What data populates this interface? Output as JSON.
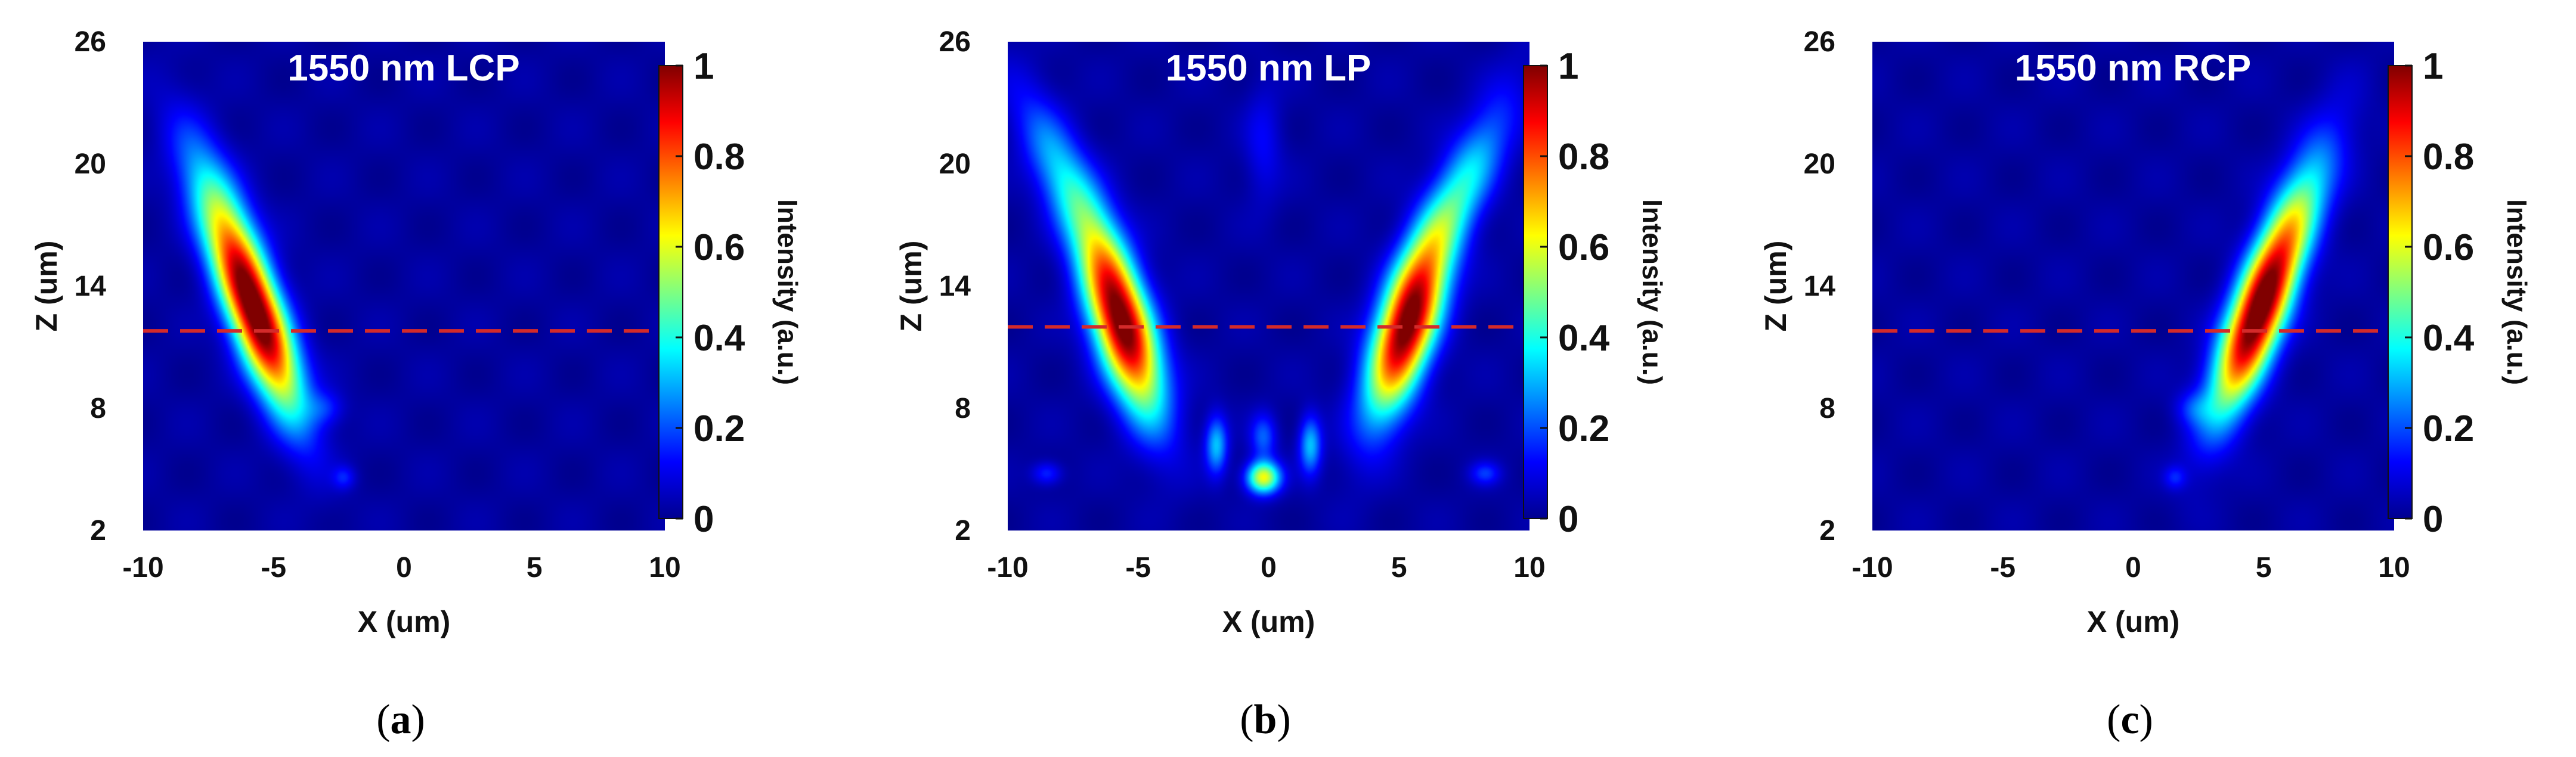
{
  "colors": {
    "background": "#ffffff",
    "reference_line": "#d42a2a",
    "colormap": [
      "#00008f",
      "#0000ff",
      "#00ffff",
      "#ffff00",
      "#ff0000",
      "#800000"
    ]
  },
  "chart_data": [
    {
      "type": "heatmap",
      "panel_id": "a",
      "title": "1550 nm LCP",
      "xlabel": "X (um)",
      "ylabel": "Z (um)",
      "xlim": [
        -10,
        10
      ],
      "ylim": [
        2,
        26
      ],
      "xticks": [
        -10,
        -5,
        0,
        5,
        10
      ],
      "yticks": [
        2,
        8,
        14,
        20,
        26
      ],
      "reference_line_z": 11.8,
      "colorbar": {
        "label": "Intensity (a.u.)",
        "ticks": [
          0,
          0.2,
          0.4,
          0.6,
          0.8,
          1
        ],
        "range": [
          0,
          1
        ]
      },
      "caption_open": "(",
      "caption_letter": "a",
      "caption_close": ")",
      "features": [
        {
          "x": -5.6,
          "z": 12.3,
          "peak": 1.0,
          "sigma_x": 0.75,
          "sigma_z": 3.2,
          "tilt_dx_dz": -0.27
        },
        {
          "x": -7.0,
          "z": 17.5,
          "peak": 0.35,
          "sigma_x": 0.8,
          "sigma_z": 3.0,
          "tilt_dx_dz": -0.3
        },
        {
          "x": -3.0,
          "z": 8.0,
          "peak": 0.12,
          "sigma_x": 0.5,
          "sigma_z": 0.6,
          "tilt_dx_dz": 0
        },
        {
          "x": -2.3,
          "z": 4.6,
          "peak": 0.12,
          "sigma_x": 0.3,
          "sigma_z": 0.4,
          "tilt_dx_dz": 0
        }
      ]
    },
    {
      "type": "heatmap",
      "panel_id": "b",
      "title": "1550 nm LP",
      "xlabel": "X (um)",
      "ylabel": "Z (um)",
      "xlim": [
        -10,
        10
      ],
      "ylim": [
        2,
        26
      ],
      "xticks": [
        -10,
        -5,
        0,
        5,
        10
      ],
      "yticks": [
        2,
        8,
        14,
        20,
        26
      ],
      "reference_line_z": 12.0,
      "colorbar": {
        "label": "Intensity (a.u.)",
        "ticks": [
          0,
          0.2,
          0.4,
          0.6,
          0.8,
          1
        ],
        "range": [
          0,
          1
        ]
      },
      "caption_open": "(",
      "caption_letter": "b",
      "caption_close": ")",
      "features": [
        {
          "x": -5.6,
          "z": 12.0,
          "peak": 1.0,
          "sigma_x": 0.8,
          "sigma_z": 3.0,
          "tilt_dx_dz": -0.22
        },
        {
          "x": 5.3,
          "z": 12.0,
          "peak": 1.0,
          "sigma_x": 0.8,
          "sigma_z": 3.0,
          "tilt_dx_dz": 0.22
        },
        {
          "x": -7.5,
          "z": 18.5,
          "peak": 0.35,
          "sigma_x": 0.8,
          "sigma_z": 3.2,
          "tilt_dx_dz": -0.35
        },
        {
          "x": 7.3,
          "z": 18.5,
          "peak": 0.35,
          "sigma_x": 0.8,
          "sigma_z": 3.2,
          "tilt_dx_dz": 0.35
        },
        {
          "x": -0.2,
          "z": 4.6,
          "peak": 0.6,
          "sigma_x": 0.45,
          "sigma_z": 0.55,
          "tilt_dx_dz": 0
        },
        {
          "x": -0.2,
          "z": 6.6,
          "peak": 0.2,
          "sigma_x": 0.35,
          "sigma_z": 0.8,
          "tilt_dx_dz": 0
        },
        {
          "x": -2.0,
          "z": 6.2,
          "peak": 0.3,
          "sigma_x": 0.3,
          "sigma_z": 1.0,
          "tilt_dx_dz": 0
        },
        {
          "x": 1.6,
          "z": 6.2,
          "peak": 0.3,
          "sigma_x": 0.3,
          "sigma_z": 1.0,
          "tilt_dx_dz": 0
        },
        {
          "x": -8.5,
          "z": 4.8,
          "peak": 0.15,
          "sigma_x": 0.4,
          "sigma_z": 0.4,
          "tilt_dx_dz": 0
        },
        {
          "x": 8.3,
          "z": 4.8,
          "peak": 0.15,
          "sigma_x": 0.4,
          "sigma_z": 0.4,
          "tilt_dx_dz": 0
        },
        {
          "x": -0.2,
          "z": 21.0,
          "peak": 0.1,
          "sigma_x": 0.5,
          "sigma_z": 2.0,
          "tilt_dx_dz": 0
        }
      ]
    },
    {
      "type": "heatmap",
      "panel_id": "c",
      "title": "1550 nm RCP",
      "xlabel": "X (um)",
      "ylabel": "Z (um)",
      "xlim": [
        -10,
        10
      ],
      "ylim": [
        2,
        26
      ],
      "xticks": [
        -10,
        -5,
        0,
        5,
        10
      ],
      "yticks": [
        2,
        8,
        14,
        20,
        26
      ],
      "reference_line_z": 11.8,
      "colorbar": {
        "label": "Intensity (a.u.)",
        "ticks": [
          0,
          0.2,
          0.4,
          0.6,
          0.8,
          1
        ],
        "range": [
          0,
          1
        ]
      },
      "caption_open": "(",
      "caption_letter": "c",
      "caption_close": ")",
      "features": [
        {
          "x": 4.7,
          "z": 12.3,
          "peak": 1.0,
          "sigma_x": 0.75,
          "sigma_z": 3.2,
          "tilt_dx_dz": 0.27
        },
        {
          "x": 6.2,
          "z": 17.5,
          "peak": 0.35,
          "sigma_x": 0.8,
          "sigma_z": 3.0,
          "tilt_dx_dz": 0.3
        },
        {
          "x": 2.3,
          "z": 8.0,
          "peak": 0.12,
          "sigma_x": 0.5,
          "sigma_z": 0.6,
          "tilt_dx_dz": 0
        },
        {
          "x": 1.6,
          "z": 4.6,
          "peak": 0.12,
          "sigma_x": 0.3,
          "sigma_z": 0.4,
          "tilt_dx_dz": 0
        }
      ]
    }
  ]
}
